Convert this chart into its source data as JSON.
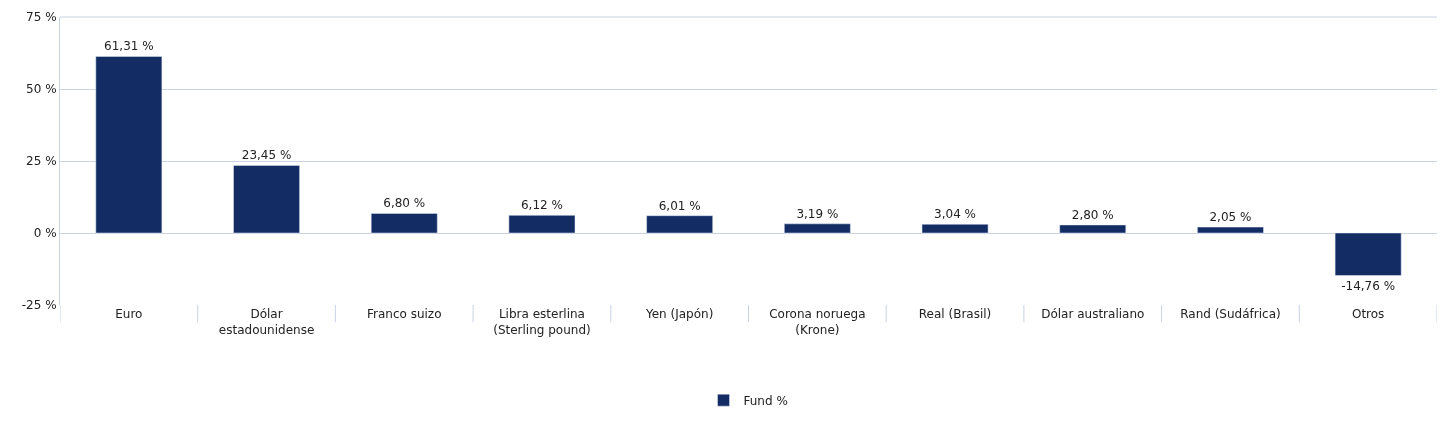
{
  "chart_data": {
    "type": "bar",
    "categories": [
      "Euro",
      "Dólar estadounidense",
      "Franco suizo",
      "Libra esterlina (Sterling pound)",
      "Yen (Japón)",
      "Corona noruega (Krone)",
      "Real (Brasil)",
      "Dólar australiano",
      "Rand (Sudáfrica)",
      "Otros"
    ],
    "series": [
      {
        "name": "Fund %",
        "color": "#132d64",
        "values": [
          61.31,
          23.45,
          6.8,
          6.12,
          6.01,
          3.19,
          3.04,
          2.8,
          2.05,
          -14.76
        ],
        "value_labels": [
          "61,31 %",
          "23,45 %",
          "6,80 %",
          "6,12 %",
          "6,01 %",
          "3,19 %",
          "3,04 %",
          "2,80 %",
          "2,05 %",
          "-14,76 %"
        ]
      }
    ],
    "ylim": [
      -25,
      75
    ],
    "yticks": [
      {
        "value": -25,
        "label": "-25 %"
      },
      {
        "value": 0,
        "label": "0 %"
      },
      {
        "value": 25,
        "label": "25 %"
      },
      {
        "value": 50,
        "label": "50 %"
      },
      {
        "value": 75,
        "label": "75 %"
      }
    ],
    "grid": "y",
    "legend": "bottom"
  }
}
